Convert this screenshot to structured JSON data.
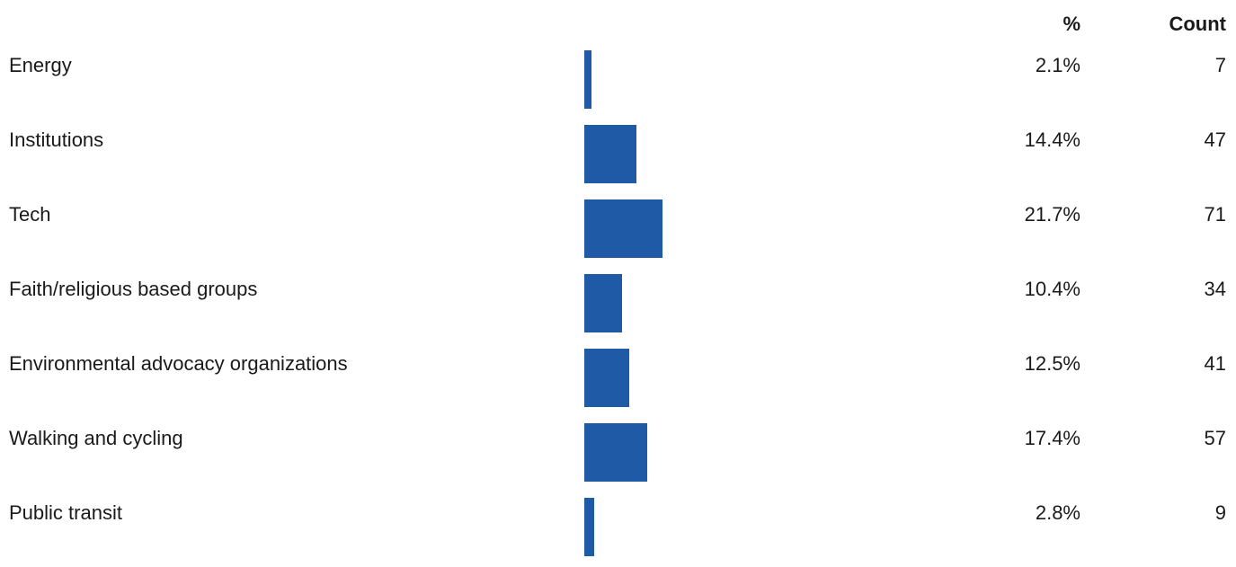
{
  "header": {
    "pct_label": "%",
    "count_label": "Count"
  },
  "colors": {
    "bar": "#1f5aa6"
  },
  "chart_data": {
    "type": "bar",
    "orientation": "horizontal",
    "categories": [
      "Energy",
      "Institutions",
      "Tech",
      "Faith/religious based groups",
      "Environmental advocacy organizations",
      "Walking and cycling",
      "Public transit"
    ],
    "values": [
      2.1,
      14.4,
      21.7,
      10.4,
      12.5,
      17.4,
      2.8
    ],
    "value_labels": [
      "2.1%",
      "14.4%",
      "21.7%",
      "10.4%",
      "12.5%",
      "17.4%",
      "2.8%"
    ],
    "counts": [
      "7",
      "47",
      "71",
      "34",
      "41",
      "57",
      "9"
    ],
    "xlim": [
      0,
      100
    ],
    "grid": false,
    "legend": "none"
  }
}
